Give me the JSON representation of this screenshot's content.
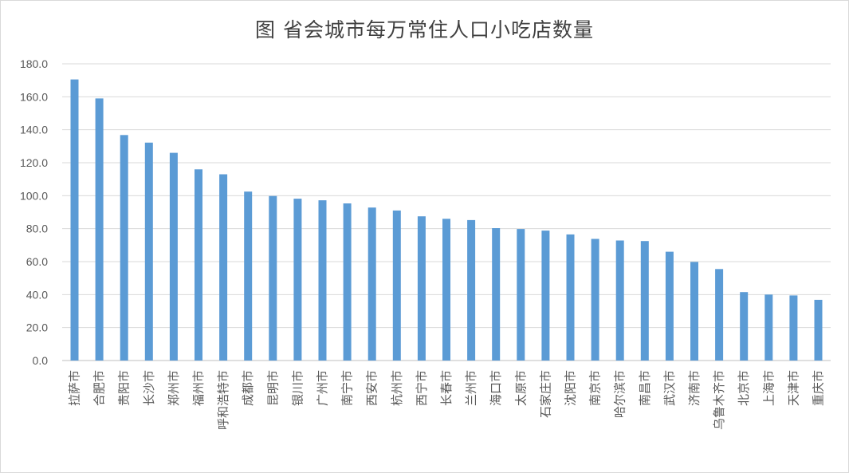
{
  "chart_data": {
    "type": "bar",
    "title": "图 省会城市每万常住人口小吃店数量",
    "xlabel": "",
    "ylabel": "",
    "ylim": [
      0,
      180
    ],
    "ytick_step": 20,
    "ytick_labels": [
      "0.0",
      "20.0",
      "40.0",
      "60.0",
      "80.0",
      "100.0",
      "120.0",
      "140.0",
      "160.0",
      "180.0"
    ],
    "grid": true,
    "legend": "none",
    "bar_color": "#5B9BD5",
    "categories": [
      "拉萨市",
      "合肥市",
      "贵阳市",
      "长沙市",
      "郑州市",
      "福州市",
      "呼和浩特市",
      "成都市",
      "昆明市",
      "银川市",
      "广州市",
      "南宁市",
      "西安市",
      "杭州市",
      "西宁市",
      "长春市",
      "兰州市",
      "海口市",
      "太原市",
      "石家庄市",
      "沈阳市",
      "南京市",
      "哈尔滨市",
      "南昌市",
      "武汉市",
      "济南市",
      "乌鲁木齐市",
      "北京市",
      "上海市",
      "天津市",
      "重庆市"
    ],
    "values": [
      170.5,
      159.0,
      136.8,
      132.2,
      126.0,
      116.0,
      113.0,
      102.5,
      99.8,
      98.2,
      97.2,
      95.3,
      92.8,
      91.0,
      87.5,
      86.0,
      85.2,
      80.3,
      79.8,
      78.8,
      76.5,
      73.8,
      72.8,
      72.5,
      66.0,
      59.8,
      55.5,
      41.5,
      40.0,
      39.5,
      36.8
    ]
  }
}
